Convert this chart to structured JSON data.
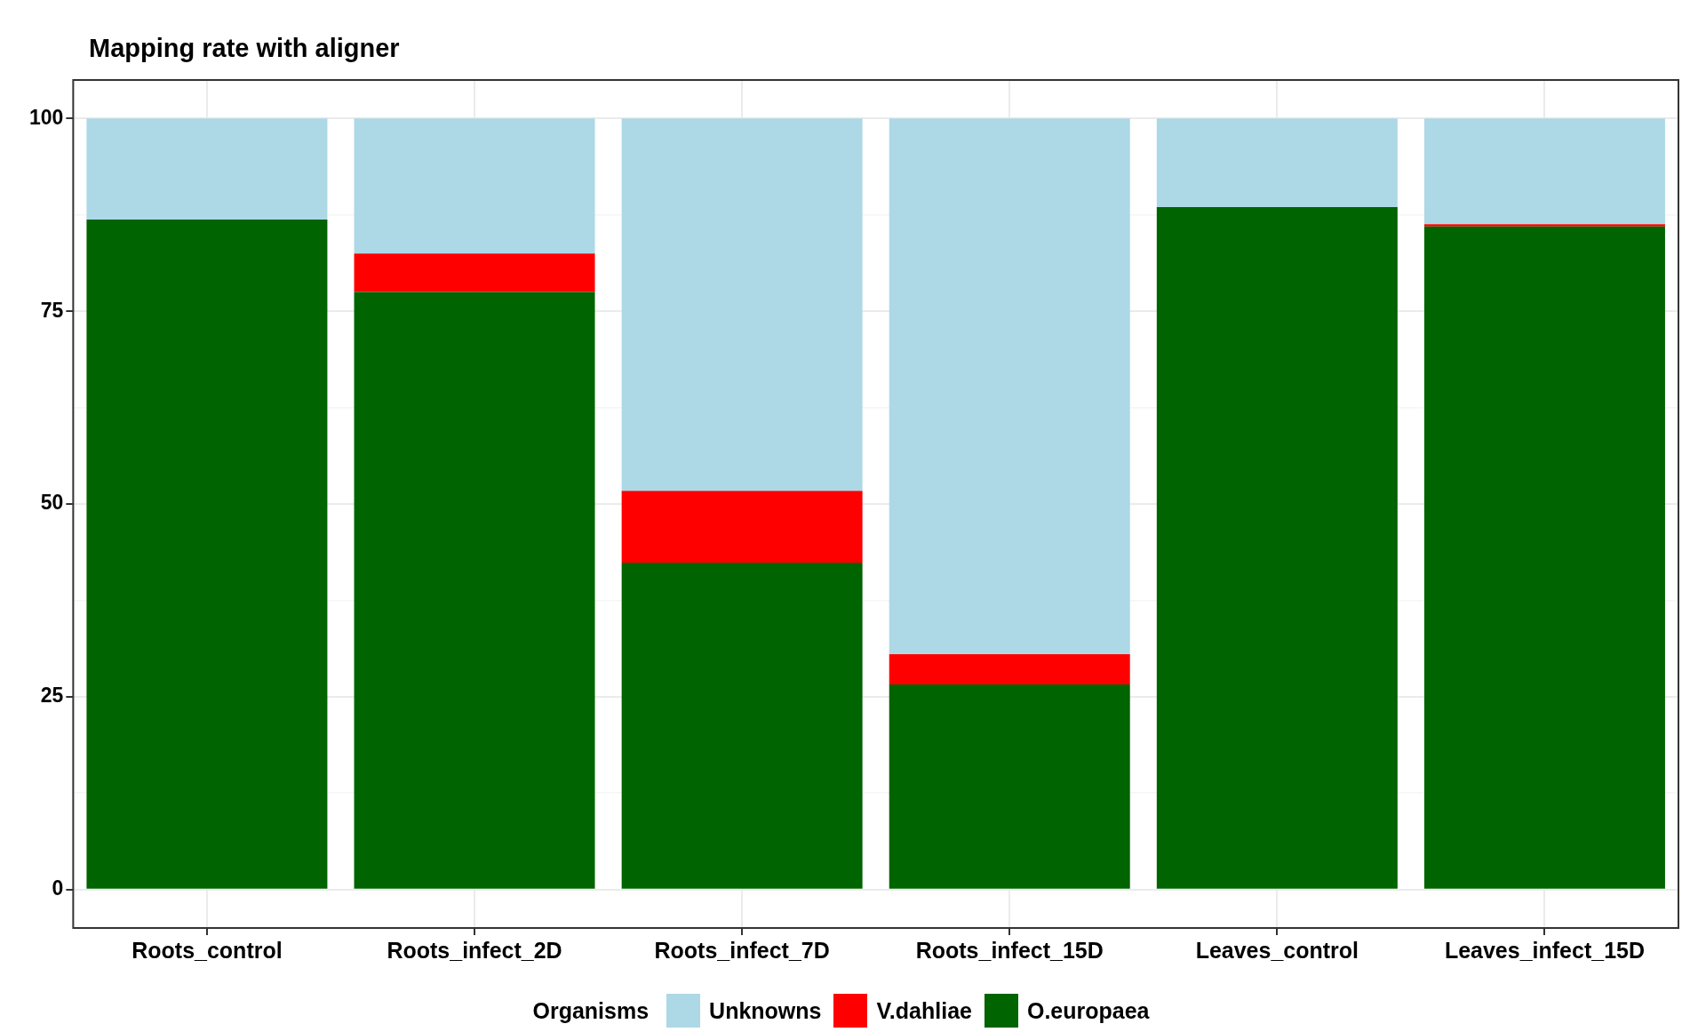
{
  "chart_data": {
    "type": "bar",
    "title": "Mapping rate with aligner",
    "legend_title": "Organisms",
    "categories": [
      "Roots_control",
      "Roots_infect_2D",
      "Roots_infect_7D",
      "Roots_infect_15D",
      "Leaves_control",
      "Leaves_infect_15D"
    ],
    "stacked": true,
    "series": [
      {
        "name": "O.europaea",
        "color": "#006400",
        "values": [
          86.9,
          77.5,
          42.4,
          26.6,
          88.5,
          86.0
        ]
      },
      {
        "name": "V.dahliae",
        "color": "#ff0000",
        "values": [
          0,
          5.0,
          9.3,
          3.9,
          0,
          0.3
        ]
      },
      {
        "name": "Unknowns",
        "color": "#add8e6",
        "values": [
          13.1,
          17.5,
          48.3,
          69.5,
          11.5,
          13.7
        ]
      }
    ],
    "ylim": [
      -5,
      105
    ],
    "yticks": [
      0,
      {
        "value": 12.5,
        "label": null
      },
      25,
      {
        "value": 37.5,
        "label": null
      },
      50,
      {
        "value": 62.5,
        "label": null
      },
      75,
      {
        "value": 87.5,
        "label": null
      },
      100
    ],
    "grid": true,
    "legend": "bottom"
  }
}
